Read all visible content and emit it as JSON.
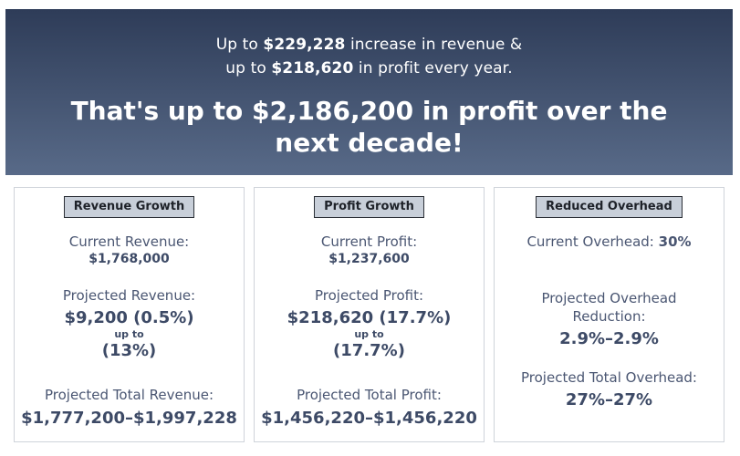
{
  "hero": {
    "line1_prefix": "Up to ",
    "line1_value": "$229,228",
    "line1_suffix": " increase in revenue &",
    "line2_prefix": "up to ",
    "line2_value": "$218,620",
    "line2_suffix": " in profit every year.",
    "headline": "That's up to $2,186,200 in profit over the next decade!"
  },
  "cards": [
    {
      "title": "Revenue Growth",
      "current_label": "Current Revenue:",
      "current_value": "$1,768,000",
      "projected_label": "Projected Revenue:",
      "projected_value": "$9,200 (0.5%)",
      "upto": "up to",
      "projected_value_max": "(13%)",
      "total_label": "Projected Total Revenue:",
      "total_value": "$1,777,200–$1,997,228"
    },
    {
      "title": "Profit Growth",
      "current_label": "Current Profit:",
      "current_value": "$1,237,600",
      "projected_label": "Projected Profit:",
      "projected_value": "$218,620 (17.7%)",
      "upto": "up to",
      "projected_value_max": "(17.7%)",
      "total_label": "Projected Total Profit:",
      "total_value": "$1,456,220–$1,456,220"
    },
    {
      "title": "Reduced Overhead",
      "current_label": "Current Overhead:",
      "current_value": "30%",
      "projected_label": "Projected Overhead Reduction:",
      "projected_value": "2.9%–2.9%",
      "total_label": "Projected Total Overhead:",
      "total_value": "27%–27%"
    }
  ]
}
